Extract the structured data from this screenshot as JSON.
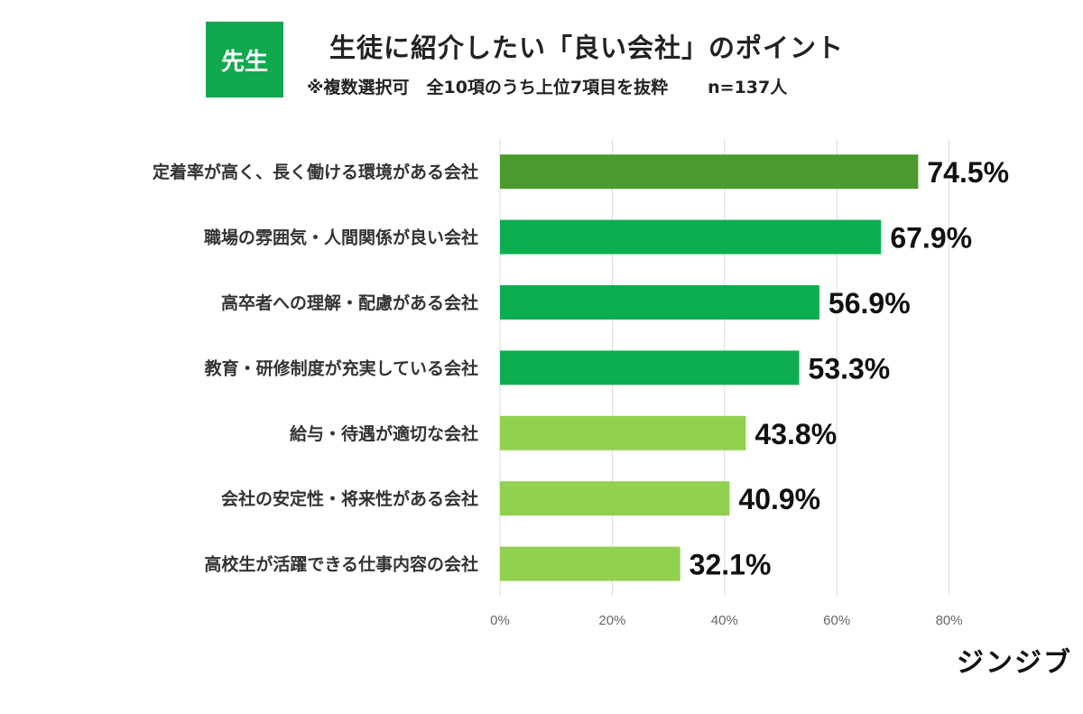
{
  "header": {
    "badge": "先生",
    "title": "生徒に紹介したい「良い会社」のポイント",
    "subtitle": "※複数選択可　全10項のうち上位7項目を抜粋",
    "n_label": "n=137人"
  },
  "brand": "ジンジブ",
  "colors": {
    "dark_green": "#4a9a2e",
    "green": "#0dae4f",
    "light_green": "#92d050",
    "grid": "#d9d9d9",
    "badge": "#12a84e"
  },
  "chart_data": {
    "type": "bar",
    "orientation": "horizontal",
    "title": "生徒に紹介したい「良い会社」のポイント",
    "categories": [
      "定着率が高く、長く働ける環境がある会社",
      "職場の雰囲気・人間関係が良い会社",
      "高卒者への理解・配慮がある会社",
      "教育・研修制度が充実している会社",
      "給与・待遇が適切な会社",
      "会社の安定性・将来性がある会社",
      "高校生が活躍できる仕事内容の会社"
    ],
    "values": [
      74.5,
      67.9,
      56.9,
      53.3,
      43.8,
      40.9,
      32.1
    ],
    "value_labels": [
      "74.5%",
      "67.9%",
      "56.9%",
      "53.3%",
      "43.8%",
      "40.9%",
      "32.1%"
    ],
    "bar_colors": [
      "#4a9a2e",
      "#0dae4f",
      "#0dae4f",
      "#0dae4f",
      "#92d050",
      "#92d050",
      "#92d050"
    ],
    "xlim": [
      0,
      80
    ],
    "xticks": [
      0,
      20,
      40,
      60,
      80
    ],
    "xtick_labels": [
      "0%",
      "20%",
      "40%",
      "60%",
      "80%"
    ],
    "grid": true,
    "legend": "none"
  }
}
